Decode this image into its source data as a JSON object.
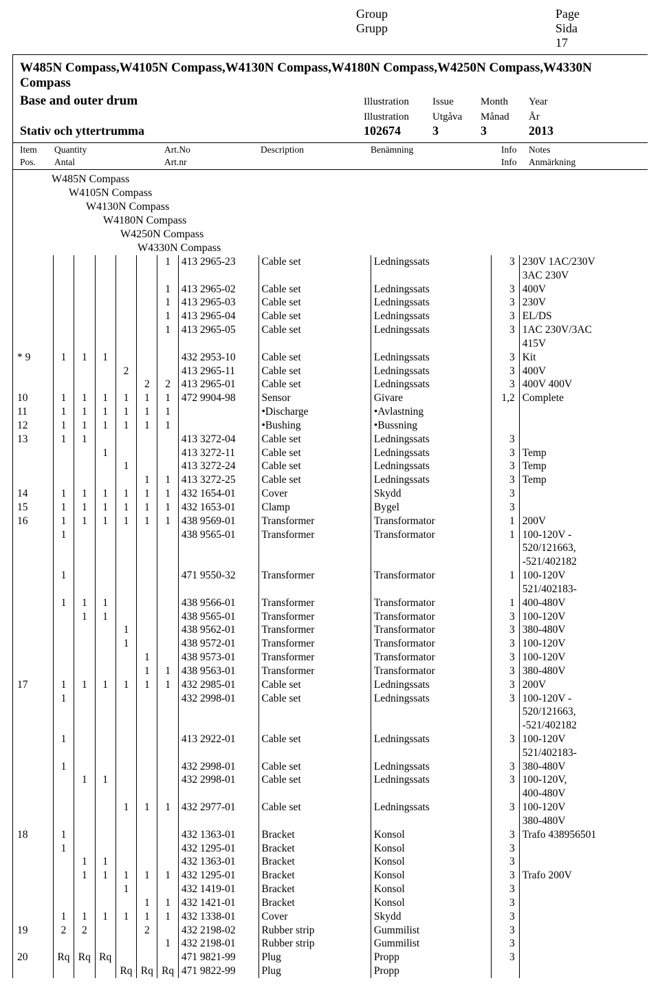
{
  "header": {
    "group_en": "Group",
    "group_sv": "Grupp",
    "page_en": "Page",
    "page_sv": "Sida",
    "page_num": "17"
  },
  "title": {
    "models": "W485N Compass,W4105N Compass,W4130N Compass,W4180N Compass,W4250N Compass,W4330N Compass",
    "sub_en": "Base and outer drum",
    "sub_sv": "Stativ och yttertrumma",
    "illustration_en": "Illustration",
    "illustration_sv": "Illustration",
    "issue_en": "Issue",
    "issue_sv": "Utgåva",
    "month_en": "Month",
    "month_sv": "Månad",
    "year_en": "Year",
    "year_sv": "År",
    "illustration_val": "102674",
    "issue_val": "3",
    "month_val": "3",
    "year_val": "2013"
  },
  "cols": {
    "item_en": "Item",
    "item_sv": "Pos.",
    "qty_en": "Quantity",
    "qty_sv": "Antal",
    "art_en": "Art.No",
    "art_sv": "Art.nr",
    "desc_en": "Description",
    "ben_en": "Benämning",
    "info_en": "Info",
    "info_sv": "Info",
    "notes_en": "Notes",
    "notes_sv": "Anmärkning"
  },
  "hierarchy": [
    "W485N Compass",
    "W4105N Compass",
    "W4130N Compass",
    "W4180N Compass",
    "W4250N Compass",
    "W4330N Compass"
  ],
  "rows": [
    {
      "item": "",
      "q": [
        "",
        "",
        "",
        "",
        "",
        "1"
      ],
      "art": "413 2965-23",
      "desc": "Cable set",
      "ben": "Ledningssats",
      "info": "3",
      "notes": "230V 1AC/230V\n3AC 230V"
    },
    {
      "item": "",
      "q": [
        "",
        "",
        "",
        "",
        "",
        "1"
      ],
      "art": "413 2965-02",
      "desc": "Cable set",
      "ben": "Ledningssats",
      "info": "3",
      "notes": "400V"
    },
    {
      "item": "",
      "q": [
        "",
        "",
        "",
        "",
        "",
        "1"
      ],
      "art": "413 2965-03",
      "desc": "Cable set",
      "ben": "Ledningssats",
      "info": "3",
      "notes": "230V"
    },
    {
      "item": "",
      "q": [
        "",
        "",
        "",
        "",
        "",
        "1"
      ],
      "art": "413 2965-04",
      "desc": "Cable set",
      "ben": "Ledningssats",
      "info": "3",
      "notes": "EL/DS"
    },
    {
      "item": "",
      "q": [
        "",
        "",
        "",
        "",
        "",
        "1"
      ],
      "art": "413 2965-05",
      "desc": "Cable set",
      "ben": "Ledningssats",
      "info": "3",
      "notes": "1AC 230V/3AC\n415V"
    },
    {
      "item": "*   9",
      "q": [
        "1",
        "1",
        "1",
        "",
        "",
        ""
      ],
      "art": "432 2953-10",
      "desc": "Cable set",
      "ben": "Ledningssats",
      "info": "3",
      "notes": "Kit"
    },
    {
      "item": "",
      "q": [
        "",
        "",
        "",
        "2",
        "",
        ""
      ],
      "art": "413 2965-11",
      "desc": "Cable set",
      "ben": "Ledningssats",
      "info": "3",
      "notes": "400V"
    },
    {
      "item": "",
      "q": [
        "",
        "",
        "",
        "",
        "2",
        "2"
      ],
      "art": "413 2965-01",
      "desc": "Cable set",
      "ben": "Ledningssats",
      "info": "3",
      "notes": "400V 400V"
    },
    {
      "item": "   10",
      "q": [
        "1",
        "1",
        "1",
        "1",
        "1",
        "1"
      ],
      "art": "472 9904-98",
      "desc": "Sensor",
      "ben": "Givare",
      "info": "1,2",
      "notes": "Complete"
    },
    {
      "item": "   11",
      "q": [
        "1",
        "1",
        "1",
        "1",
        "1",
        "1"
      ],
      "art": "",
      "desc": "•Discharge",
      "ben": "•Avlastning",
      "info": "",
      "notes": ""
    },
    {
      "item": "   12",
      "q": [
        "1",
        "1",
        "1",
        "1",
        "1",
        "1"
      ],
      "art": "",
      "desc": "•Bushing",
      "ben": "•Bussning",
      "info": "",
      "notes": ""
    },
    {
      "item": "   13",
      "q": [
        "1",
        "1",
        "",
        "",
        "",
        ""
      ],
      "art": "413 3272-04",
      "desc": "Cable set",
      "ben": "Ledningssats",
      "info": "3",
      "notes": ""
    },
    {
      "item": "",
      "q": [
        "",
        "",
        "1",
        "",
        "",
        ""
      ],
      "art": "413 3272-11",
      "desc": "Cable set",
      "ben": "Ledningssats",
      "info": "3",
      "notes": "Temp"
    },
    {
      "item": "",
      "q": [
        "",
        "",
        "",
        "1",
        "",
        ""
      ],
      "art": "413 3272-24",
      "desc": "Cable set",
      "ben": "Ledningssats",
      "info": "3",
      "notes": "Temp"
    },
    {
      "item": "",
      "q": [
        "",
        "",
        "",
        "",
        "1",
        "1"
      ],
      "art": "413 3272-25",
      "desc": "Cable set",
      "ben": "Ledningssats",
      "info": "3",
      "notes": "Temp"
    },
    {
      "item": "   14",
      "q": [
        "1",
        "1",
        "1",
        "1",
        "1",
        "1"
      ],
      "art": "432 1654-01",
      "desc": "Cover",
      "ben": "Skydd",
      "info": "3",
      "notes": ""
    },
    {
      "item": "   15",
      "q": [
        "1",
        "1",
        "1",
        "1",
        "1",
        "1"
      ],
      "art": "432 1653-01",
      "desc": "Clamp",
      "ben": "Bygel",
      "info": "3",
      "notes": ""
    },
    {
      "item": "   16",
      "q": [
        "1",
        "1",
        "1",
        "1",
        "1",
        "1"
      ],
      "art": "438 9569-01",
      "desc": "Transformer",
      "ben": "Transformator",
      "info": "1",
      "notes": "200V"
    },
    {
      "item": "",
      "q": [
        "1",
        "",
        "",
        "",
        "",
        ""
      ],
      "art": "438 9565-01",
      "desc": "Transformer",
      "ben": "Transformator",
      "info": "1",
      "notes": "100-120V -\n520/121663,\n-521/402182"
    },
    {
      "item": "",
      "q": [
        "1",
        "",
        "",
        "",
        "",
        ""
      ],
      "art": "471 9550-32",
      "desc": "Transformer",
      "ben": "Transformator",
      "info": "1",
      "notes": "100-120V\n521/402183-"
    },
    {
      "item": "",
      "q": [
        "1",
        "1",
        "1",
        "",
        "",
        ""
      ],
      "art": "438 9566-01",
      "desc": "Transformer",
      "ben": "Transformator",
      "info": "1",
      "notes": "400-480V"
    },
    {
      "item": "",
      "q": [
        "",
        "1",
        "1",
        "",
        "",
        ""
      ],
      "art": "438 9565-01",
      "desc": "Transformer",
      "ben": "Transformator",
      "info": "3",
      "notes": "100-120V"
    },
    {
      "item": "",
      "q": [
        "",
        "",
        "",
        "1",
        "",
        ""
      ],
      "art": "438 9562-01",
      "desc": "Transformer",
      "ben": "Transformator",
      "info": "3",
      "notes": "380-480V"
    },
    {
      "item": "",
      "q": [
        "",
        "",
        "",
        "1",
        "",
        ""
      ],
      "art": "438 9572-01",
      "desc": "Transformer",
      "ben": "Transformator",
      "info": "3",
      "notes": "100-120V"
    },
    {
      "item": "",
      "q": [
        "",
        "",
        "",
        "",
        "1",
        ""
      ],
      "art": "438 9573-01",
      "desc": "Transformer",
      "ben": "Transformator",
      "info": "3",
      "notes": "100-120V"
    },
    {
      "item": "",
      "q": [
        "",
        "",
        "",
        "",
        "1",
        "1"
      ],
      "art": "438 9563-01",
      "desc": "Transformer",
      "ben": "Transformator",
      "info": "3",
      "notes": "380-480V"
    },
    {
      "item": "   17",
      "q": [
        "1",
        "1",
        "1",
        "1",
        "1",
        "1"
      ],
      "art": "432 2985-01",
      "desc": "Cable set",
      "ben": "Ledningssats",
      "info": "3",
      "notes": "200V"
    },
    {
      "item": "",
      "q": [
        "1",
        "",
        "",
        "",
        "",
        ""
      ],
      "art": "432 2998-01",
      "desc": "Cable set",
      "ben": "Ledningssats",
      "info": "3",
      "notes": "100-120V -\n520/121663,\n-521/402182"
    },
    {
      "item": "",
      "q": [
        "1",
        "",
        "",
        "",
        "",
        ""
      ],
      "art": "413 2922-01",
      "desc": "Cable set",
      "ben": "Ledningssats",
      "info": "3",
      "notes": "100-120V\n521/402183-"
    },
    {
      "item": "",
      "q": [
        "1",
        "",
        "",
        "",
        "",
        ""
      ],
      "art": "432 2998-01",
      "desc": "Cable set",
      "ben": "Ledningssats",
      "info": "3",
      "notes": "380-480V"
    },
    {
      "item": "",
      "q": [
        "",
        "1",
        "1",
        "",
        "",
        ""
      ],
      "art": "432 2998-01",
      "desc": "Cable set",
      "ben": "Ledningssats",
      "info": "3",
      "notes": "100-120V,\n400-480V"
    },
    {
      "item": "",
      "q": [
        "",
        "",
        "",
        "1",
        "1",
        "1"
      ],
      "art": "432 2977-01",
      "desc": "Cable set",
      "ben": "Ledningssats",
      "info": "3",
      "notes": "100-120V\n380-480V"
    },
    {
      "item": "   18",
      "q": [
        "1",
        "",
        "",
        "",
        "",
        ""
      ],
      "art": "432 1363-01",
      "desc": "Bracket",
      "ben": "Konsol",
      "info": "3",
      "notes": "Trafo 438956501"
    },
    {
      "item": "",
      "q": [
        "1",
        "",
        "",
        "",
        "",
        ""
      ],
      "art": "432 1295-01",
      "desc": "Bracket",
      "ben": "Konsol",
      "info": "3",
      "notes": ""
    },
    {
      "item": "",
      "q": [
        "",
        "1",
        "1",
        "",
        "",
        ""
      ],
      "art": "432 1363-01",
      "desc": "Bracket",
      "ben": "Konsol",
      "info": "3",
      "notes": ""
    },
    {
      "item": "",
      "q": [
        "",
        "1",
        "1",
        "1",
        "1",
        "1"
      ],
      "art": "432 1295-01",
      "desc": "Bracket",
      "ben": "Konsol",
      "info": "3",
      "notes": "Trafo 200V"
    },
    {
      "item": "",
      "q": [
        "",
        "",
        "",
        "1",
        "",
        ""
      ],
      "art": "432 1419-01",
      "desc": "Bracket",
      "ben": "Konsol",
      "info": "3",
      "notes": ""
    },
    {
      "item": "",
      "q": [
        "",
        "",
        "",
        "",
        "1",
        "1"
      ],
      "art": "432 1421-01",
      "desc": "Bracket",
      "ben": "Konsol",
      "info": "3",
      "notes": ""
    },
    {
      "item": "",
      "q": [
        "1",
        "1",
        "1",
        "1",
        "1",
        "1"
      ],
      "art": "432 1338-01",
      "desc": "Cover",
      "ben": "Skydd",
      "info": "3",
      "notes": ""
    },
    {
      "item": "   19",
      "q": [
        "2",
        "2",
        "",
        "",
        "2",
        ""
      ],
      "art": "432 2198-02",
      "desc": "Rubber strip",
      "ben": "Gummilist",
      "info": "3",
      "notes": ""
    },
    {
      "item": "",
      "q": [
        "",
        "",
        "",
        "",
        "",
        "1"
      ],
      "art": "432 2198-01",
      "desc": "Rubber strip",
      "ben": "Gummilist",
      "info": "3",
      "notes": ""
    },
    {
      "item": "   20",
      "q": [
        "Rq",
        "Rq",
        "Rq",
        "",
        "",
        ""
      ],
      "art": "471 9821-99",
      "desc": "Plug",
      "ben": "Propp",
      "info": "3",
      "notes": ""
    },
    {
      "item": "",
      "q": [
        "",
        "",
        "",
        "Rq",
        "Rq",
        "Rq"
      ],
      "art": "471 9822-99",
      "desc": "Plug",
      "ben": "Propp",
      "info": "",
      "notes": ""
    }
  ]
}
